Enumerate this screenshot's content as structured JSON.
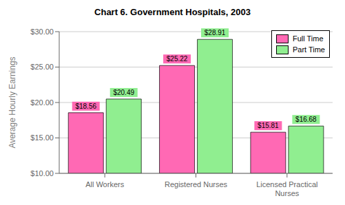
{
  "chart_data": {
    "type": "bar",
    "title": "Chart 6. Government Hospitals, 2003",
    "categories": [
      "All Workers",
      "Registered Nurses",
      "Licensed Practical\nNurses"
    ],
    "series": [
      {
        "name": "Full Time",
        "color": "#FF69B4",
        "values": [
          18.56,
          25.22,
          15.81
        ],
        "value_labels": [
          "$18.56",
          "$25.22",
          "$15.81"
        ]
      },
      {
        "name": "Part Time",
        "color": "#90EE90",
        "values": [
          20.49,
          28.91,
          16.68
        ],
        "value_labels": [
          "$20.49",
          "$28.91",
          "$16.68"
        ]
      }
    ],
    "ylabel": "Average Hourly Earnings",
    "ylim": [
      10.0,
      30.0
    ],
    "yticks": [
      {
        "value": 10.0,
        "label": "$10.00"
      },
      {
        "value": 15.0,
        "label": "$15.00"
      },
      {
        "value": 20.0,
        "label": "$20.00"
      },
      {
        "value": 25.0,
        "label": "$25.00"
      },
      {
        "value": 30.0,
        "label": "$30.00"
      }
    ],
    "grid": true,
    "legend": "upper right",
    "data_labels": true
  }
}
